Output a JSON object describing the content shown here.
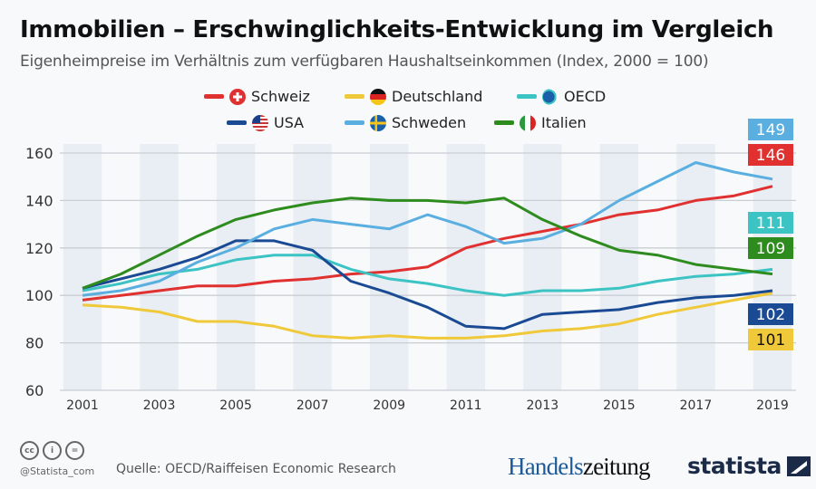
{
  "title": "Immobilien – Erschwinglichkeits-Entwicklung im Vergleich",
  "subtitle": "Eigenheimpreise im Verhältnis zum verfügbaren Haushaltseinkommen (Index, 2000 = 100)",
  "chart_data": {
    "type": "line",
    "x": [
      2001,
      2002,
      2003,
      2004,
      2005,
      2006,
      2007,
      2008,
      2009,
      2010,
      2011,
      2012,
      2013,
      2014,
      2015,
      2016,
      2017,
      2018,
      2019
    ],
    "x_tick_labels": [
      "2001",
      "2003",
      "2005",
      "2007",
      "2009",
      "2011",
      "2013",
      "2015",
      "2017",
      "2019"
    ],
    "ylim": [
      60,
      160
    ],
    "y_tick_labels": [
      "60",
      "80",
      "100",
      "120",
      "140",
      "160"
    ],
    "y_ticks": [
      60,
      80,
      100,
      120,
      140,
      160
    ],
    "grid": true,
    "legend": "top",
    "series": [
      {
        "name": "Schweiz",
        "color": "#e03030",
        "flag": "switzerland-flag-icon",
        "end_label": "146",
        "values": [
          98,
          100,
          102,
          104,
          104,
          106,
          107,
          109,
          110,
          112,
          120,
          124,
          127,
          130,
          134,
          136,
          140,
          142,
          146
        ]
      },
      {
        "name": "Deutschland",
        "color": "#f0c93a",
        "flag": "germany-flag-icon",
        "end_label": "101",
        "values": [
          96,
          95,
          93,
          89,
          89,
          87,
          83,
          82,
          83,
          82,
          82,
          83,
          85,
          86,
          88,
          92,
          95,
          98,
          101
        ]
      },
      {
        "name": "OECD",
        "color": "#3cc3c3",
        "flag": "oecd-logo-icon",
        "end_label": "111",
        "values": [
          102,
          105,
          109,
          111,
          115,
          117,
          117,
          111,
          107,
          105,
          102,
          100,
          102,
          102,
          103,
          106,
          108,
          109,
          111
        ]
      },
      {
        "name": "USA",
        "color": "#1a4a94",
        "flag": "usa-flag-icon",
        "end_label": "102",
        "values": [
          103,
          107,
          111,
          116,
          123,
          123,
          119,
          106,
          101,
          95,
          87,
          86,
          92,
          93,
          94,
          97,
          99,
          100,
          102
        ]
      },
      {
        "name": "Schweden",
        "color": "#5aafe0",
        "flag": "sweden-flag-icon",
        "end_label": "149",
        "values": [
          100,
          102,
          106,
          114,
          120,
          128,
          132,
          130,
          128,
          134,
          129,
          122,
          124,
          130,
          140,
          148,
          156,
          152,
          149
        ]
      },
      {
        "name": "Italien",
        "color": "#2e8b1e",
        "flag": "italy-flag-icon",
        "end_label": "109",
        "values": [
          103,
          109,
          117,
          125,
          132,
          136,
          139,
          141,
          140,
          140,
          139,
          141,
          132,
          125,
          119,
          117,
          113,
          111,
          109
        ]
      }
    ]
  },
  "footer": {
    "handle": "@Statista_com",
    "source": "Quelle: OECD/Raiffeisen Economic Research",
    "logo_handelszeitung_a": "Handels",
    "logo_handelszeitung_b": "zeitung",
    "logo_statista": "statista",
    "cc_icons": [
      "cc",
      "i",
      "="
    ]
  }
}
